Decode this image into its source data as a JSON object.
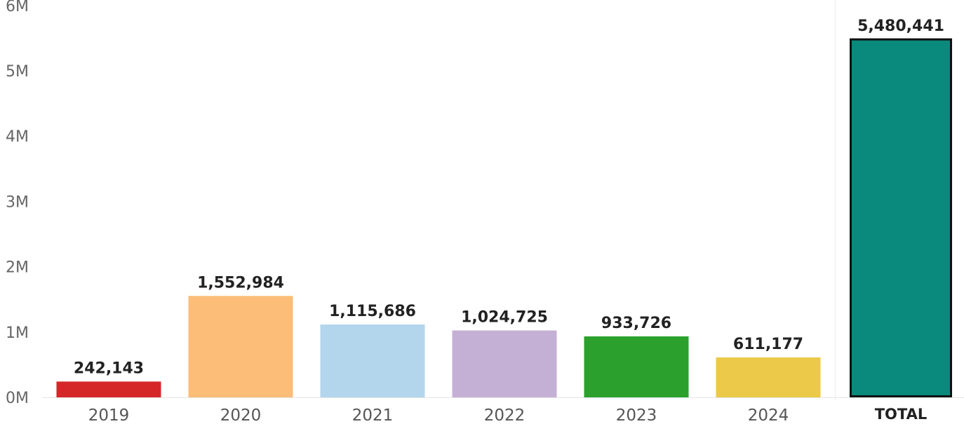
{
  "chart_data": {
    "type": "bar",
    "title": "",
    "xlabel": "",
    "ylabel": "",
    "ylim": [
      0,
      6000000
    ],
    "y_ticks": [
      {
        "value": 0,
        "label": "0M"
      },
      {
        "value": 1000000,
        "label": "1M"
      },
      {
        "value": 2000000,
        "label": "2M"
      },
      {
        "value": 3000000,
        "label": "3M"
      },
      {
        "value": 4000000,
        "label": "4M"
      },
      {
        "value": 5000000,
        "label": "5M"
      },
      {
        "value": 6000000,
        "label": "6M"
      }
    ],
    "grid": false,
    "legend": "none",
    "categories": [
      "2019",
      "2020",
      "2021",
      "2022",
      "2023",
      "2024"
    ],
    "values": [
      242143,
      1552984,
      1115686,
      1024725,
      933726,
      611177
    ],
    "value_labels": [
      "242,143",
      "1,552,984",
      "1,115,686",
      "1,024,725",
      "933,726",
      "611,177"
    ],
    "colors": [
      "#d62728",
      "#fbbd77",
      "#b3d6ec",
      "#c5b0d5",
      "#2ca02c",
      "#ecc948"
    ],
    "total": {
      "label": "TOTAL",
      "value": 5480441,
      "value_label": "5,480,441",
      "color": "#098a7c",
      "outline": "#111111"
    }
  }
}
